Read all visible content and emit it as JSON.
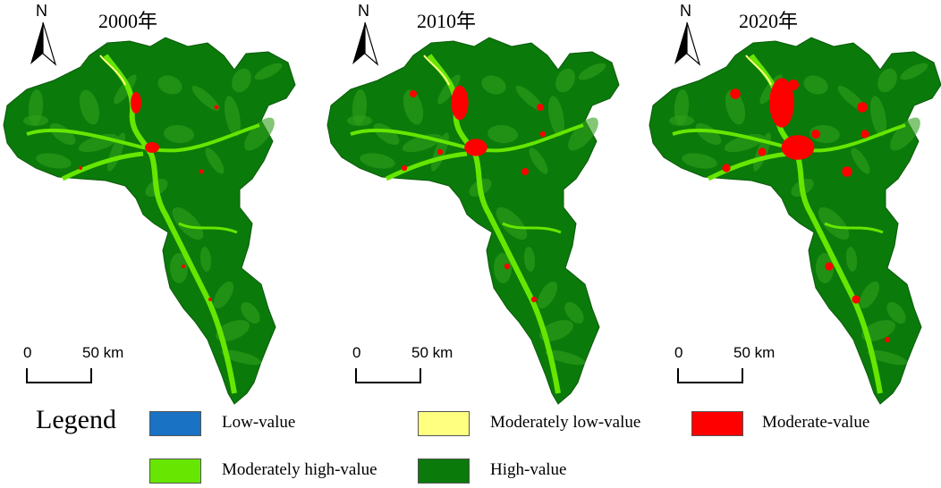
{
  "panels": [
    {
      "year_label": "2000年",
      "north_label": "N",
      "scale_start": "0",
      "scale_end": "50 km",
      "urban_level": 1
    },
    {
      "year_label": "2010年",
      "north_label": "N",
      "scale_start": "0",
      "scale_end": "50 km",
      "urban_level": 2
    },
    {
      "year_label": "2020年",
      "north_label": "N",
      "scale_start": "0",
      "scale_end": "50 km",
      "urban_level": 3
    }
  ],
  "legend": {
    "title": "Legend",
    "items": [
      {
        "label": "Low-value",
        "color": "#1a72c4"
      },
      {
        "label": "Moderately low-value",
        "color": "#ffff80"
      },
      {
        "label": "Moderate-value",
        "color": "#ff0000"
      },
      {
        "label": "Moderately high-value",
        "color": "#66e600"
      },
      {
        "label": "High-value",
        "color": "#0a7a0a"
      }
    ]
  }
}
